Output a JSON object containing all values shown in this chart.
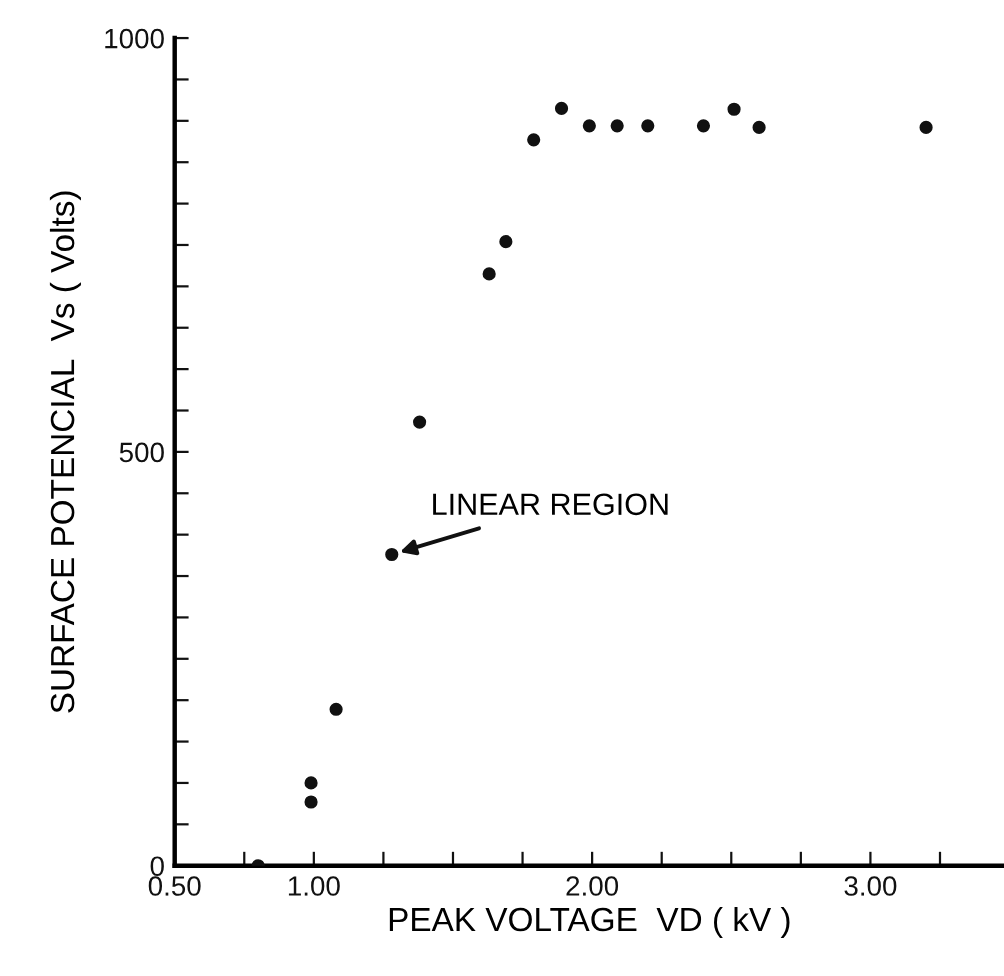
{
  "chart_data": {
    "type": "scatter",
    "xlabel": "PEAK VOLTAGE  VD ( kV )",
    "ylabel": "SURFACE POTENCIAL  Vs ( Volts)",
    "x": [
      0.8,
      0.99,
      0.99,
      1.08,
      1.28,
      1.38,
      1.63,
      1.69,
      1.79,
      1.89,
      1.99,
      2.09,
      2.2,
      2.4,
      2.51,
      2.6,
      3.2
    ],
    "series": [
      {
        "color": "#111111",
        "values": [
          0,
          100,
          77,
          189,
          376,
          536,
          715,
          754,
          877,
          915,
          894,
          894,
          894,
          894,
          914,
          892,
          892
        ]
      }
    ],
    "marker": "circle",
    "grid": false,
    "legend": false,
    "xlim": [
      0.5,
      3.48
    ],
    "ylim": [
      0,
      1000
    ],
    "xticks": [
      {
        "value": 0.5,
        "label": "0.50"
      },
      {
        "value": 0.75,
        "label": null
      },
      {
        "value": 1.0,
        "label": "1.00"
      },
      {
        "value": 1.25,
        "label": null
      },
      {
        "value": 1.5,
        "label": null
      },
      {
        "value": 1.75,
        "label": null
      },
      {
        "value": 2.0,
        "label": "2.00"
      },
      {
        "value": 2.25,
        "label": null
      },
      {
        "value": 2.5,
        "label": null
      },
      {
        "value": 2.75,
        "label": null
      },
      {
        "value": 3.0,
        "label": "3.00"
      },
      {
        "value": 3.25,
        "label": null
      }
    ],
    "yticks": [
      0,
      {
        "value": 50,
        "label": null
      },
      {
        "value": 100,
        "label": null
      },
      {
        "value": 150,
        "label": null
      },
      {
        "value": 200,
        "label": null
      },
      {
        "value": 250,
        "label": null
      },
      {
        "value": 300,
        "label": null
      },
      {
        "value": 350,
        "label": null
      },
      {
        "value": 400,
        "label": null
      },
      {
        "value": 450,
        "label": null
      },
      500,
      {
        "value": 550,
        "label": null
      },
      {
        "value": 600,
        "label": null
      },
      {
        "value": 650,
        "label": null
      },
      {
        "value": 700,
        "label": null
      },
      {
        "value": 750,
        "label": null
      },
      {
        "value": 800,
        "label": null
      },
      {
        "value": 850,
        "label": null
      },
      {
        "value": 900,
        "label": null
      },
      {
        "value": 950,
        "label": null
      },
      1000
    ],
    "annotations": [
      {
        "text": "LINEAR REGION",
        "x": 1.28,
        "y": 376
      }
    ]
  }
}
